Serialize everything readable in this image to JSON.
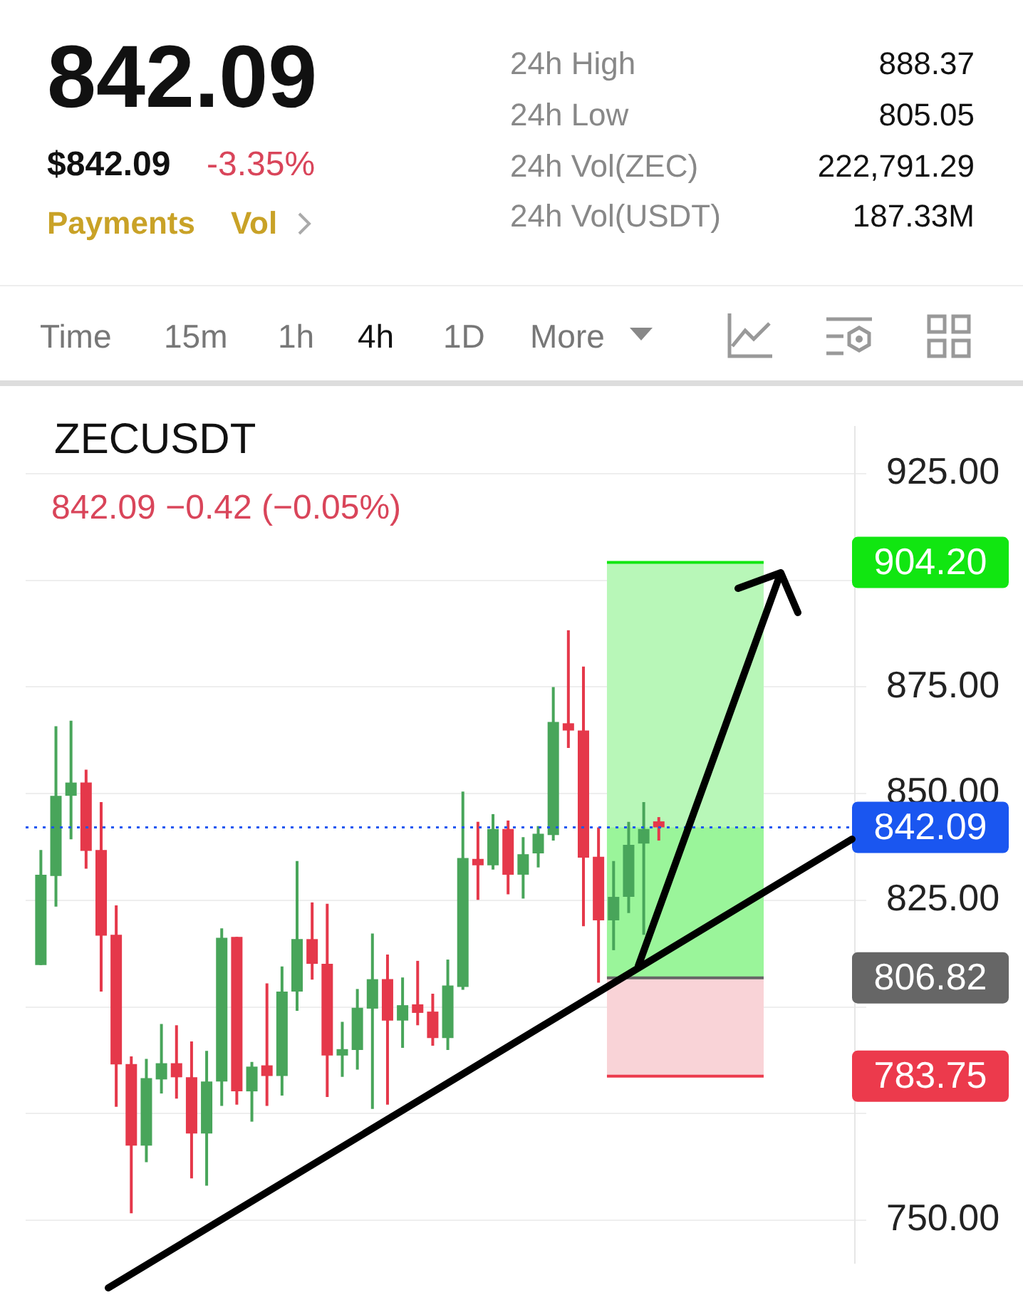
{
  "chart_data": {
    "type": "candlestick",
    "title": "ZECUSDT",
    "subtitle": "842.09 −0.42 (−0.05%)",
    "annotations": [
      "842.09",
      "$842.09",
      "-3.35%",
      "Payments",
      "Vol",
      "24h High",
      "888.37",
      "24h Low",
      "805.05",
      "24h Vol(ZEC)",
      "222,791.29",
      "24h Vol(USDT)",
      "187.33M",
      "Time",
      "15m",
      "1h",
      "4h",
      "1D",
      "More"
    ],
    "categories": [
      null,
      null,
      null,
      null,
      null,
      null,
      null,
      null,
      null,
      null,
      null,
      null,
      null,
      null,
      null,
      null,
      null,
      null,
      null,
      null,
      null,
      null,
      null,
      null,
      null,
      null,
      null,
      null,
      null,
      null,
      null,
      null,
      null,
      null,
      null,
      null,
      null,
      null,
      null,
      null,
      null,
      null,
      null,
      null,
      null,
      null,
      null,
      null,
      null,
      null,
      null,
      null,
      null,
      null
    ],
    "ohlc": [
      [
        809.8,
        836.8,
        809.8,
        831.0
      ],
      [
        830.7,
        865.8,
        823.5,
        849.5
      ],
      [
        849.5,
        867.1,
        839.3,
        852.6
      ],
      [
        852.6,
        855.6,
        832.4,
        836.6
      ],
      [
        836.8,
        848.0,
        803.6,
        816.7
      ],
      [
        816.9,
        823.8,
        776.6,
        786.5
      ],
      [
        786.6,
        788.4,
        751.6,
        767.5
      ],
      [
        767.5,
        787.8,
        763.6,
        783.3
      ],
      [
        783.0,
        796.0,
        779.7,
        786.8
      ],
      [
        786.8,
        795.7,
        778.5,
        783.5
      ],
      [
        783.5,
        791.9,
        759.8,
        770.3
      ],
      [
        770.3,
        789.7,
        758.1,
        782.5
      ],
      [
        782.5,
        818.4,
        776.8,
        816.2
      ],
      [
        816.4,
        816.4,
        777.1,
        780.2
      ],
      [
        780.2,
        787.1,
        773.1,
        786.0
      ],
      [
        786.3,
        805.5,
        776.8,
        783.8
      ],
      [
        783.8,
        809.5,
        779.2,
        803.6
      ],
      [
        803.6,
        834.2,
        799.1,
        815.9
      ],
      [
        815.9,
        824.5,
        806.4,
        810.1
      ],
      [
        810.1,
        824.2,
        778.9,
        788.6
      ],
      [
        788.6,
        796.5,
        783.6,
        790.1
      ],
      [
        789.9,
        804.2,
        785.3,
        799.8
      ],
      [
        799.6,
        817.2,
        776.1,
        806.5
      ],
      [
        806.5,
        812.3,
        777.1,
        796.8
      ],
      [
        796.8,
        806.9,
        790.4,
        800.4
      ],
      [
        800.6,
        810.8,
        795.7,
        798.6
      ],
      [
        798.9,
        803.1,
        790.9,
        792.7
      ],
      [
        792.7,
        811.1,
        789.9,
        805.0
      ],
      [
        804.7,
        850.5,
        804.0,
        834.9
      ],
      [
        834.7,
        843.4,
        825.1,
        833.2
      ],
      [
        833.2,
        845.2,
        832.2,
        841.7
      ],
      [
        841.7,
        843.7,
        826.4,
        831.0
      ],
      [
        831.0,
        839.8,
        825.4,
        835.8
      ],
      [
        836.0,
        842.4,
        832.7,
        840.6
      ],
      [
        840.3,
        875.0,
        839.0,
        866.8
      ],
      [
        866.5,
        888.3,
        860.7,
        864.8
      ],
      [
        864.8,
        879.8,
        818.9,
        835.0
      ],
      [
        835.2,
        842.1,
        805.7,
        820.3
      ],
      [
        820.3,
        834.2,
        813.3,
        825.8
      ],
      [
        825.8,
        843.4,
        822.0,
        838.0
      ],
      [
        838.3,
        848.0,
        816.9,
        841.7
      ],
      [
        843.5,
        844.5,
        839.0,
        842.09
      ],
      null,
      null,
      null,
      null,
      null,
      null,
      null,
      null,
      null,
      null,
      null,
      null
    ],
    "colors": [
      "#48a55a",
      "#48a55a",
      "#48a55a",
      "#e5384a",
      "#e5384a",
      "#e5384a",
      "#e5384a",
      "#48a55a",
      "#48a55a",
      "#e5384a",
      "#e5384a",
      "#48a55a",
      "#48a55a",
      "#e5384a",
      "#48a55a",
      "#e5384a",
      "#48a55a",
      "#48a55a",
      "#e5384a",
      "#e5384a",
      "#48a55a",
      "#48a55a",
      "#48a55a",
      "#e5384a",
      "#48a55a",
      "#e5384a",
      "#e5384a",
      "#48a55a",
      "#48a55a",
      "#e5384a",
      "#48a55a",
      "#e5384a",
      "#48a55a",
      "#48a55a",
      "#48a55a",
      "#e5384a",
      "#e5384a",
      "#e5384a",
      "#48a55a",
      "#48a55a",
      "#48a55a",
      "#e5384a",
      null,
      null,
      null,
      null,
      null,
      null,
      null,
      null,
      null,
      null,
      null,
      null
    ],
    "ylim": [
      740,
      936
    ],
    "yticks": [
      {
        "value": 750,
        "label": "750.00"
      },
      {
        "value": 775,
        "label": null
      },
      {
        "value": 800,
        "label": null
      },
      {
        "value": 825,
        "label": "825.00"
      },
      {
        "value": 850,
        "label": "850.00"
      },
      {
        "value": 875,
        "label": "875.00"
      },
      {
        "value": 900,
        "label": null
      },
      {
        "value": 925,
        "label": "925.00"
      }
    ],
    "tick_labels": "y",
    "grid": "y",
    "bands": [
      {
        "axis": "y",
        "from": 806.82,
        "to": 904.2,
        "color": "#b8f7b8"
      },
      {
        "axis": "y",
        "from": 806.82,
        "to": 842.09,
        "color": "#9af59a"
      },
      {
        "axis": "y",
        "from": 783.75,
        "to": 806.82,
        "color": "#f9d3d7"
      }
    ],
    "ref_lines": [
      {
        "axis": "y",
        "value": 842.09,
        "label": "842.09",
        "color": "#1a56f0",
        "line_style": "dotted"
      },
      {
        "axis": "y",
        "value": 904.2,
        "label": "904.20",
        "color": "#11e611",
        "line_style": "solid"
      },
      {
        "axis": "y",
        "value": 806.82,
        "label": "806.82",
        "color": "#666666",
        "line_style": "solid"
      },
      {
        "axis": "y",
        "value": 783.75,
        "label": "783.75",
        "color": "#ec3a4c",
        "line_style": "solid"
      }
    ]
  }
}
